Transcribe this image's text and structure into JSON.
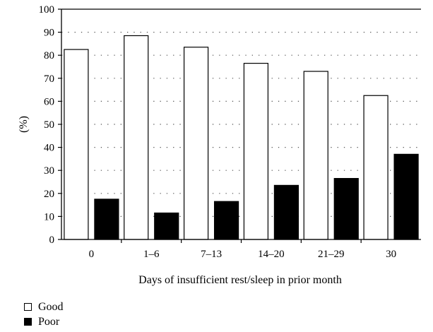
{
  "chart_data": {
    "type": "bar",
    "categories": [
      "0",
      "1–6",
      "7–13",
      "14–20",
      "21–29",
      "30"
    ],
    "series": [
      {
        "name": "Good",
        "values": [
          82.5,
          88.5,
          83.5,
          76.5,
          73.0,
          62.5
        ],
        "color": "#ffffff"
      },
      {
        "name": "Poor",
        "values": [
          17.5,
          11.5,
          16.5,
          23.5,
          26.5,
          37.0
        ],
        "color": "#000000"
      }
    ],
    "xlabel": "Days of insufficient rest/sleep in prior month",
    "ylabel": "(%)",
    "ylim": [
      0,
      100
    ],
    "yticks": [
      "0",
      "10",
      "20",
      "30",
      "40",
      "50",
      "60",
      "70",
      "80",
      "90",
      "100"
    ],
    "grid": "horizontal dotted",
    "legend_position": "bottom-left"
  }
}
